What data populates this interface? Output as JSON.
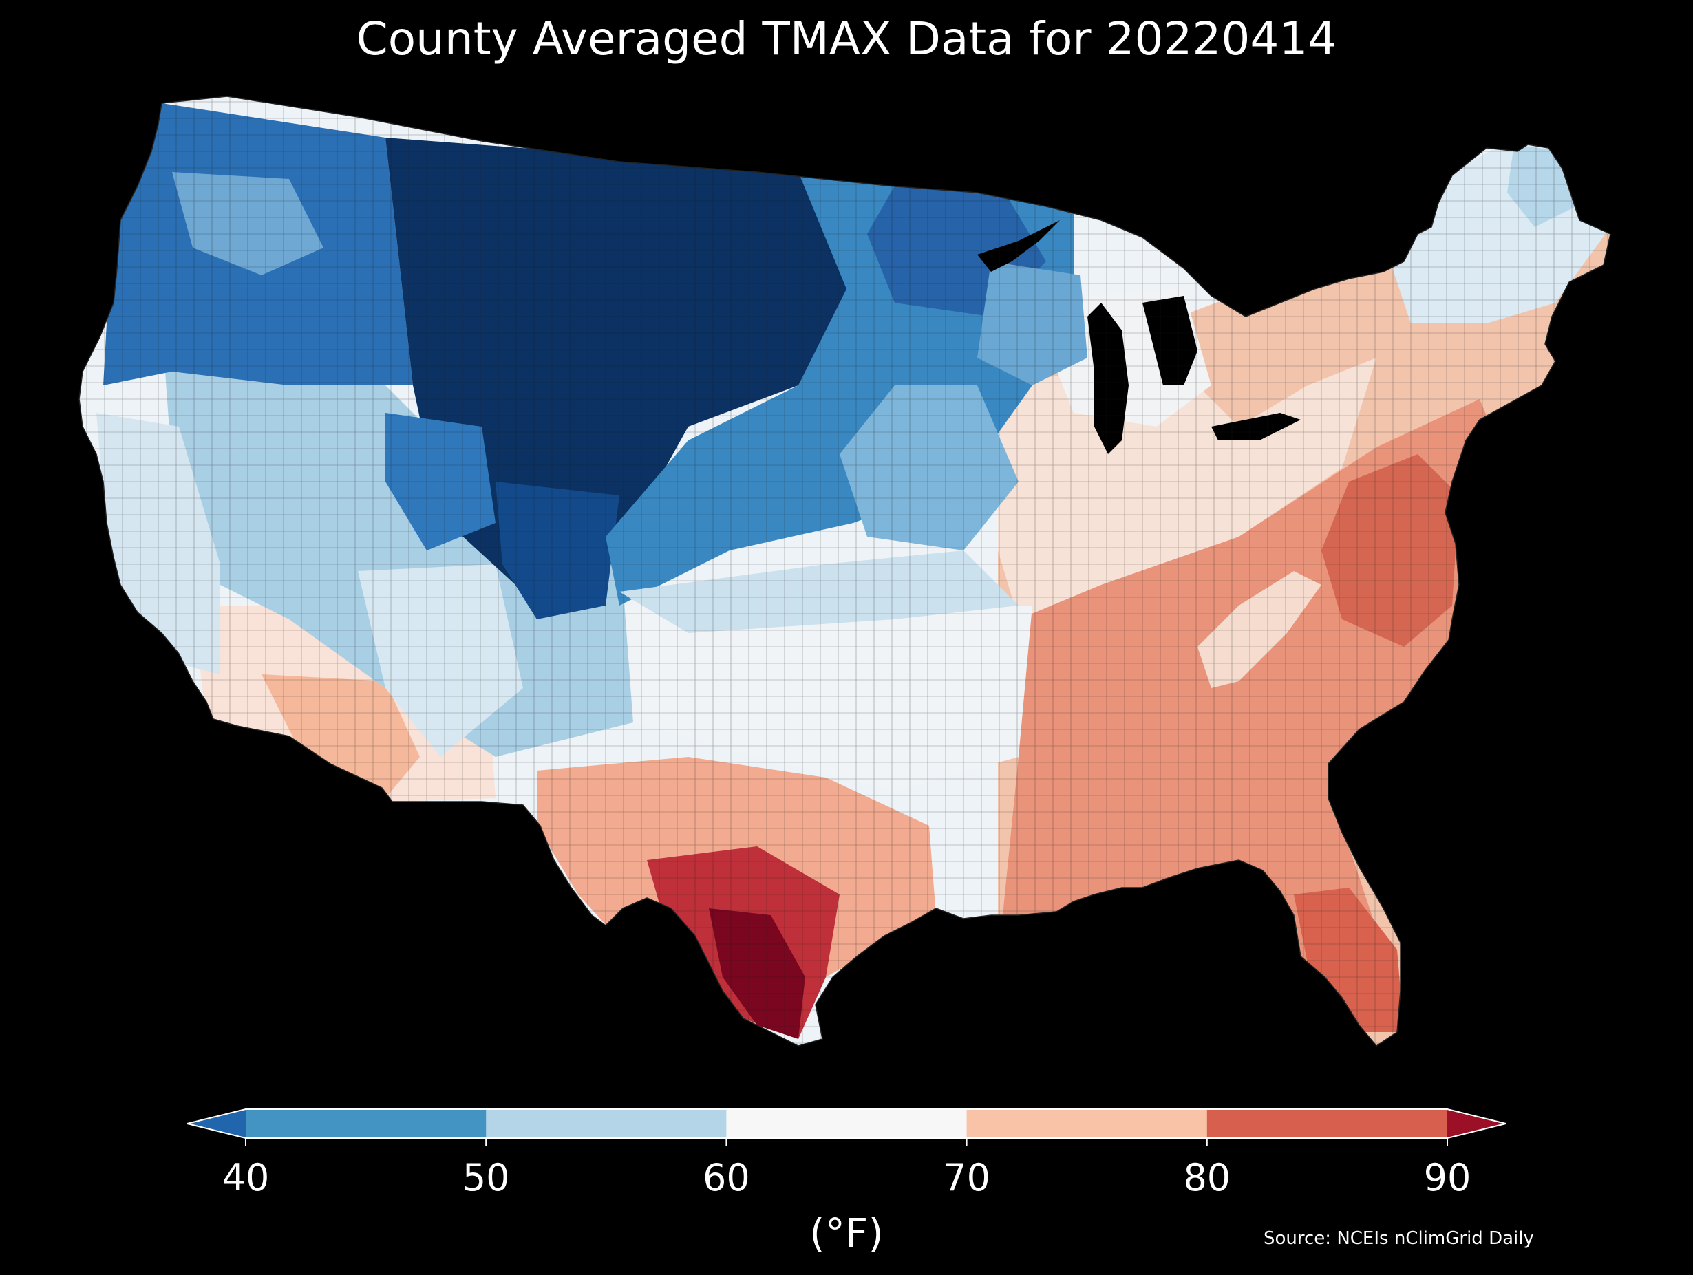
{
  "title": "County Averaged TMAX Data for 20220414",
  "source": "Source: NCEIs nClimGrid Daily",
  "colorbar": {
    "units": "(°F)",
    "ticks": [
      "40",
      "50",
      "60",
      "70",
      "80",
      "90"
    ],
    "tick_values": [
      40,
      50,
      60,
      70,
      80,
      90
    ],
    "bins": [
      {
        "range": "<40",
        "color": "#2166ac"
      },
      {
        "range": "40-50",
        "color": "#4393c3"
      },
      {
        "range": "50-60",
        "color": "#b4d5e8"
      },
      {
        "range": "60-70",
        "color": "#f7f7f7"
      },
      {
        "range": "70-80",
        "color": "#f8c3a6"
      },
      {
        "range": "80-90",
        "color": "#d6604d"
      },
      {
        "range": ">90",
        "color": "#9b1027"
      }
    ],
    "extend": "both"
  },
  "regions": [
    {
      "name": "pacific-northwest",
      "temp_range": "40-50",
      "color": "#2f74b8"
    },
    {
      "name": "northern-rockies-plains",
      "temp_range": "<40",
      "color": "#0a2f62"
    },
    {
      "name": "upper-midwest",
      "temp_range": "40-50",
      "color": "#3e8cc4"
    },
    {
      "name": "great-basin",
      "temp_range": "50-60",
      "color": "#9ec9e2"
    },
    {
      "name": "california-coast",
      "temp_range": "50-60",
      "color": "#cde3ef"
    },
    {
      "name": "southwest-desert",
      "temp_range": "70-80",
      "color": "#f5b89b"
    },
    {
      "name": "central-plains",
      "temp_range": "60-70",
      "color": "#e9f1f6"
    },
    {
      "name": "ohio-valley",
      "temp_range": "70-80",
      "color": "#f3c4ac"
    },
    {
      "name": "southeast",
      "temp_range": "80-90",
      "color": "#e58a70"
    },
    {
      "name": "mid-atlantic",
      "temp_range": "80-90",
      "color": "#d66a55"
    },
    {
      "name": "south-texas",
      "temp_range": ">90",
      "color": "#8b0a22"
    },
    {
      "name": "new-england",
      "temp_range": "50-60",
      "color": "#d9e9f2"
    },
    {
      "name": "florida",
      "temp_range": "80-90",
      "color": "#de6f5a"
    }
  ]
}
